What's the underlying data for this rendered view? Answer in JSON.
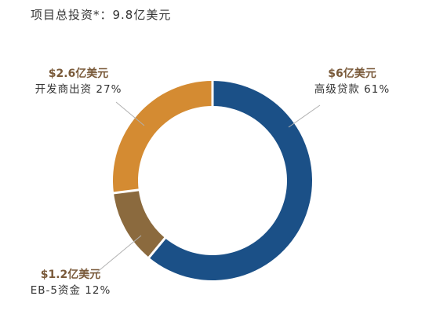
{
  "title": "项目总投资*：9.8亿美元",
  "chart_data": {
    "type": "pie",
    "donut": true,
    "segments": [
      {
        "amount": "$6亿美元",
        "name": "高级贷款",
        "percent_label": "61%",
        "value": 61,
        "color": "#1b5087"
      },
      {
        "amount": "$1.2亿美元",
        "name": "EB-5资金",
        "percent_label": "12%",
        "value": 12,
        "color": "#8b6a3e"
      },
      {
        "amount": "$2.6亿美元",
        "name": "开发商出资",
        "percent_label": "27%",
        "value": 27,
        "color": "#d48b32"
      }
    ]
  }
}
